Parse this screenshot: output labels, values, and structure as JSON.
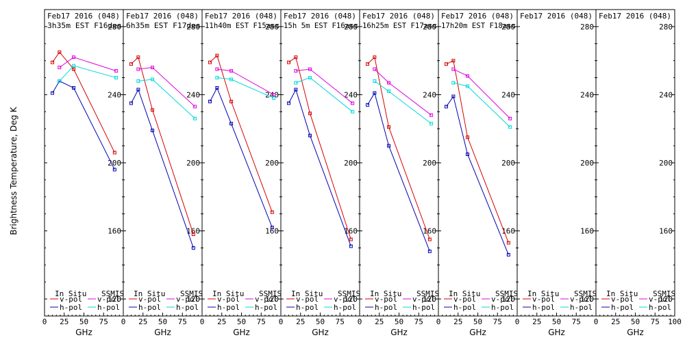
{
  "chart_data": {
    "type": "line",
    "ylabel": "Brightness Temperature, Deg K",
    "xlabel": "GHz",
    "ylim": [
      110,
      290
    ],
    "xlim": [
      0,
      100
    ],
    "yticks": [
      120,
      160,
      200,
      240,
      280
    ],
    "xticks": [
      0,
      25,
      50,
      75,
      100
    ],
    "grid": false,
    "colors": {
      "insitu_v": "#d40000",
      "insitu_h": "#0000b0",
      "ssmis_v": "#e000e0",
      "ssmis_h": "#00d8d8"
    },
    "legend": {
      "insitu_title": "In Situ",
      "ssmis_title": "SSMIS",
      "v_label": "v-pol",
      "h_label": "h-pol",
      "placement": "bottom"
    },
    "panels": [
      {
        "title1": "Feb17 2016 (048)",
        "title2": "3h35m EST F16des",
        "series": [
          {
            "name": "In Situ v-pol",
            "x": [
              10,
              19,
              37,
              89
            ],
            "y": [
              259,
              265,
              255,
              206
            ]
          },
          {
            "name": "In Situ h-pol",
            "x": [
              10,
              19,
              37,
              89
            ],
            "y": [
              241,
              248,
              244,
              196
            ]
          },
          {
            "name": "SSMIS v-pol",
            "x": [
              19,
              37,
              91
            ],
            "y": [
              256,
              262,
              254
            ]
          },
          {
            "name": "SSMIS h-pol",
            "x": [
              19,
              37,
              91
            ],
            "y": [
              248,
              257,
              250
            ]
          }
        ]
      },
      {
        "title1": "Feb17 2016 (048)",
        "title2": "6h35m EST F17des",
        "series": [
          {
            "name": "In Situ v-pol",
            "x": [
              10,
              19,
              37,
              89
            ],
            "y": [
              258,
              262,
              231,
              158
            ]
          },
          {
            "name": "In Situ h-pol",
            "x": [
              10,
              19,
              37,
              89
            ],
            "y": [
              235,
              243,
              219,
              150
            ]
          },
          {
            "name": "SSMIS v-pol",
            "x": [
              19,
              37,
              91
            ],
            "y": [
              255,
              256,
              233
            ]
          },
          {
            "name": "SSMIS h-pol",
            "x": [
              19,
              37,
              91
            ],
            "y": [
              248,
              249,
              226
            ]
          }
        ]
      },
      {
        "title1": "Feb17 2016 (048)",
        "title2": "11h40m EST F15asc",
        "series": [
          {
            "name": "In Situ v-pol",
            "x": [
              10,
              19,
              37,
              89
            ],
            "y": [
              259,
              263,
              236,
              171
            ]
          },
          {
            "name": "In Situ h-pol",
            "x": [
              10,
              19,
              37,
              89
            ],
            "y": [
              236,
              244,
              223,
              162
            ]
          },
          {
            "name": "SSMIS v-pol",
            "x": [
              19,
              37,
              91
            ],
            "y": [
              255,
              254,
              240
            ]
          },
          {
            "name": "SSMIS h-pol",
            "x": [
              19,
              37,
              91
            ],
            "y": [
              250,
              249,
              238
            ]
          }
        ]
      },
      {
        "title1": "Feb17 2016 (048)",
        "title2": "15h 5m EST F16asc",
        "series": [
          {
            "name": "In Situ v-pol",
            "x": [
              10,
              19,
              37,
              89
            ],
            "y": [
              259,
              262,
              229,
              155
            ]
          },
          {
            "name": "In Situ h-pol",
            "x": [
              10,
              19,
              37,
              89
            ],
            "y": [
              235,
              243,
              216,
              151
            ]
          },
          {
            "name": "SSMIS v-pol",
            "x": [
              19,
              37,
              91
            ],
            "y": [
              254,
              255,
              235
            ]
          },
          {
            "name": "SSMIS h-pol",
            "x": [
              19,
              37,
              91
            ],
            "y": [
              247,
              250,
              230
            ]
          }
        ]
      },
      {
        "title1": "Feb17 2016 (048)",
        "title2": "16h25m EST F17asc",
        "series": [
          {
            "name": "In Situ v-pol",
            "x": [
              10,
              19,
              37,
              89
            ],
            "y": [
              258,
              262,
              221,
              155
            ]
          },
          {
            "name": "In Situ h-pol",
            "x": [
              10,
              19,
              37,
              89
            ],
            "y": [
              234,
              241,
              210,
              148
            ]
          },
          {
            "name": "SSMIS v-pol",
            "x": [
              19,
              37,
              91
            ],
            "y": [
              255,
              247,
              228
            ]
          },
          {
            "name": "SSMIS h-pol",
            "x": [
              19,
              37,
              91
            ],
            "y": [
              248,
              242,
              223
            ]
          }
        ]
      },
      {
        "title1": "Feb17 2016 (048)",
        "title2": "17h20m EST F18asc",
        "series": [
          {
            "name": "In Situ v-pol",
            "x": [
              10,
              19,
              37,
              89
            ],
            "y": [
              258,
              260,
              215,
              153
            ]
          },
          {
            "name": "In Situ h-pol",
            "x": [
              10,
              19,
              37,
              89
            ],
            "y": [
              233,
              239,
              205,
              146
            ]
          },
          {
            "name": "SSMIS v-pol",
            "x": [
              19,
              37,
              91
            ],
            "y": [
              255,
              251,
              226
            ]
          },
          {
            "name": "SSMIS h-pol",
            "x": [
              19,
              37,
              91
            ],
            "y": [
              247,
              245,
              221
            ]
          }
        ]
      },
      {
        "title1": "Feb17 2016 (048)",
        "title2": "",
        "series": []
      },
      {
        "title1": "Feb17 2016 (048)",
        "title2": "",
        "series": []
      }
    ]
  }
}
